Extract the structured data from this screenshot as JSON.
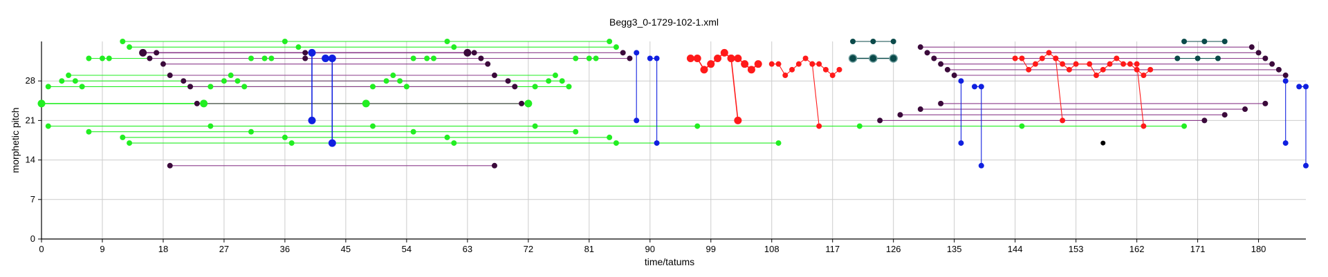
{
  "chart_data": {
    "type": "scatter",
    "title": "Begg3_0-1729-102-1.xml",
    "xlabel": "time/tatums",
    "ylabel": "morphetic pitch",
    "xlim": [
      0,
      187
    ],
    "ylim": [
      0,
      35
    ],
    "xticks": [
      0,
      9,
      18,
      27,
      36,
      45,
      54,
      63,
      72,
      81,
      90,
      99,
      108,
      117,
      126,
      135,
      144,
      153,
      162,
      171,
      180
    ],
    "yticks": [
      0,
      7,
      14,
      21,
      28
    ],
    "grid": true,
    "colors": {
      "green": "#22ee22",
      "dark_purple": "#3b0a3b",
      "purple_line": "#8a3a8a",
      "blue": "#1020e0",
      "red": "#ff1a1a",
      "teal": "#0b4a4a",
      "black": "#000000"
    },
    "connections": [
      {
        "color": "green",
        "points": [
          [
            12,
            35
          ],
          [
            36,
            35
          ],
          [
            60,
            35
          ],
          [
            84,
            35
          ]
        ]
      },
      {
        "color": "green",
        "points": [
          [
            13,
            34
          ],
          [
            38,
            34
          ],
          [
            61,
            34
          ],
          [
            85,
            34
          ]
        ]
      },
      {
        "color": "green",
        "points": [
          [
            7,
            32
          ],
          [
            9,
            32
          ],
          [
            10,
            32
          ],
          [
            31,
            32
          ],
          [
            33,
            32
          ],
          [
            34,
            32
          ],
          [
            55,
            32
          ],
          [
            57,
            32
          ],
          [
            58,
            32
          ],
          [
            79,
            32
          ],
          [
            81,
            32
          ],
          [
            82,
            32
          ]
        ]
      },
      {
        "color": "green",
        "points": [
          [
            4,
            29
          ],
          [
            28,
            29
          ],
          [
            52,
            29
          ],
          [
            76,
            29
          ]
        ]
      },
      {
        "color": "green",
        "points": [
          [
            3,
            28
          ],
          [
            5,
            28
          ],
          [
            27,
            28
          ],
          [
            29,
            28
          ],
          [
            51,
            28
          ],
          [
            53,
            28
          ],
          [
            75,
            28
          ],
          [
            77,
            28
          ]
        ]
      },
      {
        "color": "green",
        "points": [
          [
            1,
            27
          ],
          [
            6,
            27
          ],
          [
            25,
            27
          ],
          [
            30,
            27
          ],
          [
            49,
            27
          ],
          [
            54,
            27
          ],
          [
            73,
            27
          ],
          [
            78,
            27
          ]
        ]
      },
      {
        "color": "green",
        "points": [
          [
            0,
            24
          ],
          [
            24,
            24
          ],
          [
            48,
            24
          ],
          [
            72,
            24
          ]
        ],
        "big": true
      },
      {
        "color": "green",
        "points": [
          [
            1,
            20
          ],
          [
            25,
            20
          ],
          [
            49,
            20
          ],
          [
            73,
            20
          ],
          [
            97,
            20
          ],
          [
            121,
            20
          ],
          [
            145,
            20
          ],
          [
            169,
            20
          ]
        ]
      },
      {
        "color": "green",
        "points": [
          [
            7,
            19
          ],
          [
            31,
            19
          ],
          [
            55,
            19
          ],
          [
            79,
            19
          ]
        ]
      },
      {
        "color": "green",
        "points": [
          [
            12,
            18
          ],
          [
            36,
            18
          ],
          [
            60,
            18
          ],
          [
            84,
            18
          ]
        ]
      },
      {
        "color": "green",
        "points": [
          [
            13,
            17
          ],
          [
            37,
            17
          ],
          [
            61,
            17
          ],
          [
            85,
            17
          ],
          [
            109,
            17
          ]
        ]
      },
      {
        "color": "dark_purple",
        "line": "purple_line",
        "points": [
          [
            15,
            33
          ],
          [
            63,
            33
          ]
        ],
        "big": true
      },
      {
        "color": "dark_purple",
        "line": "purple_line",
        "points": [
          [
            17,
            33
          ],
          [
            39,
            33
          ],
          [
            40,
            33
          ],
          [
            64,
            33
          ],
          [
            86,
            33
          ]
        ]
      },
      {
        "color": "dark_purple",
        "line": "purple_line",
        "points": [
          [
            16,
            32
          ],
          [
            39,
            32
          ],
          [
            42,
            32
          ],
          [
            65,
            32
          ],
          [
            87,
            32
          ]
        ]
      },
      {
        "color": "dark_purple",
        "line": "purple_line",
        "points": [
          [
            18,
            31
          ],
          [
            66,
            31
          ]
        ]
      },
      {
        "color": "dark_purple",
        "line": "purple_line",
        "points": [
          [
            19,
            29
          ],
          [
            67,
            29
          ]
        ]
      },
      {
        "color": "dark_purple",
        "line": "purple_line",
        "points": [
          [
            21,
            28
          ],
          [
            69,
            28
          ]
        ]
      },
      {
        "color": "dark_purple",
        "line": "purple_line",
        "points": [
          [
            22,
            27
          ],
          [
            70,
            27
          ]
        ]
      },
      {
        "color": "dark_purple",
        "line": "purple_line",
        "points": [
          [
            23,
            24
          ],
          [
            71,
            24
          ]
        ]
      },
      {
        "color": "dark_purple",
        "line": "purple_line",
        "points": [
          [
            19,
            13
          ],
          [
            67,
            13
          ]
        ]
      },
      {
        "color": "dark_purple",
        "line": "purple_line",
        "points": [
          [
            130,
            34
          ],
          [
            179,
            34
          ]
        ]
      },
      {
        "color": "dark_purple",
        "line": "purple_line",
        "points": [
          [
            131,
            33
          ],
          [
            180,
            33
          ]
        ]
      },
      {
        "color": "dark_purple",
        "line": "purple_line",
        "points": [
          [
            132,
            32
          ],
          [
            181,
            32
          ]
        ]
      },
      {
        "color": "dark_purple",
        "line": "purple_line",
        "points": [
          [
            133,
            31
          ],
          [
            182,
            31
          ]
        ]
      },
      {
        "color": "dark_purple",
        "line": "purple_line",
        "points": [
          [
            134,
            30
          ],
          [
            183,
            30
          ]
        ]
      },
      {
        "color": "dark_purple",
        "line": "purple_line",
        "points": [
          [
            135,
            29
          ],
          [
            184,
            29
          ]
        ]
      },
      {
        "color": "dark_purple",
        "line": "purple_line",
        "points": [
          [
            133,
            24
          ],
          [
            181,
            24
          ]
        ]
      },
      {
        "color": "dark_purple",
        "line": "purple_line",
        "points": [
          [
            130,
            23
          ],
          [
            178,
            23
          ]
        ]
      },
      {
        "color": "dark_purple",
        "line": "purple_line",
        "points": [
          [
            127,
            22
          ],
          [
            175,
            22
          ]
        ]
      },
      {
        "color": "dark_purple",
        "line": "purple_line",
        "points": [
          [
            124,
            21
          ],
          [
            172,
            21
          ]
        ]
      },
      {
        "color": "blue",
        "points": [
          [
            40,
            33
          ],
          [
            40,
            21
          ]
        ],
        "big": true
      },
      {
        "color": "blue",
        "points": [
          [
            42,
            32
          ],
          [
            43,
            32
          ],
          [
            43,
            17
          ]
        ],
        "big": true
      },
      {
        "color": "blue",
        "points": [
          [
            88,
            33
          ],
          [
            88,
            21
          ]
        ]
      },
      {
        "color": "blue",
        "points": [
          [
            90,
            32
          ],
          [
            91,
            32
          ],
          [
            91,
            17
          ]
        ]
      },
      {
        "color": "blue",
        "points": [
          [
            136,
            28
          ],
          [
            136,
            17
          ]
        ]
      },
      {
        "color": "blue",
        "points": [
          [
            138,
            27
          ],
          [
            139,
            27
          ],
          [
            139,
            13
          ]
        ]
      },
      {
        "color": "blue",
        "points": [
          [
            184,
            28
          ],
          [
            184,
            17
          ]
        ]
      },
      {
        "color": "blue",
        "points": [
          [
            186,
            27
          ],
          [
            187,
            27
          ],
          [
            187,
            13
          ]
        ]
      },
      {
        "color": "red",
        "points": [
          [
            96,
            32
          ],
          [
            97,
            32
          ],
          [
            98,
            30
          ],
          [
            99,
            31
          ],
          [
            100,
            32
          ],
          [
            101,
            33
          ],
          [
            102,
            32
          ],
          [
            103,
            32
          ],
          [
            104,
            31
          ],
          [
            105,
            30
          ],
          [
            106,
            31
          ]
        ],
        "big": true
      },
      {
        "color": "red",
        "points": [
          [
            102,
            32
          ],
          [
            103,
            21
          ]
        ],
        "big": true
      },
      {
        "color": "red",
        "points": [
          [
            108,
            31
          ],
          [
            109,
            31
          ],
          [
            110,
            29
          ],
          [
            111,
            30
          ],
          [
            112,
            31
          ],
          [
            113,
            32
          ],
          [
            114,
            31
          ],
          [
            115,
            31
          ],
          [
            116,
            30
          ],
          [
            117,
            29
          ],
          [
            118,
            30
          ]
        ]
      },
      {
        "color": "red",
        "points": [
          [
            114,
            31
          ],
          [
            115,
            20
          ]
        ]
      },
      {
        "color": "red",
        "points": [
          [
            144,
            32
          ],
          [
            145,
            32
          ],
          [
            146,
            30
          ],
          [
            147,
            31
          ],
          [
            148,
            32
          ],
          [
            149,
            33
          ],
          [
            150,
            32
          ],
          [
            151,
            31
          ],
          [
            152,
            30
          ],
          [
            153,
            31
          ],
          [
            155,
            31
          ],
          [
            156,
            29
          ],
          [
            157,
            30
          ],
          [
            158,
            31
          ],
          [
            159,
            32
          ],
          [
            160,
            31
          ],
          [
            161,
            31
          ],
          [
            162,
            30
          ],
          [
            163,
            29
          ],
          [
            164,
            30
          ]
        ]
      },
      {
        "color": "red",
        "points": [
          [
            150,
            32
          ],
          [
            151,
            21
          ]
        ]
      },
      {
        "color": "red",
        "points": [
          [
            162,
            31
          ],
          [
            163,
            20
          ]
        ]
      },
      {
        "color": "teal",
        "points": [
          [
            120,
            35
          ],
          [
            123,
            35
          ],
          [
            126,
            35
          ]
        ]
      },
      {
        "color": "teal",
        "points": [
          [
            120,
            32
          ],
          [
            123,
            32
          ],
          [
            126,
            32
          ]
        ],
        "big": true
      },
      {
        "color": "teal",
        "points": [
          [
            169,
            35
          ],
          [
            172,
            35
          ],
          [
            175,
            35
          ]
        ]
      },
      {
        "color": "teal",
        "points": [
          [
            168,
            32
          ],
          [
            171,
            32
          ],
          [
            174,
            32
          ]
        ]
      }
    ],
    "isolated_points": [
      {
        "color": "black",
        "points": [
          [
            157,
            17
          ]
        ]
      }
    ]
  }
}
